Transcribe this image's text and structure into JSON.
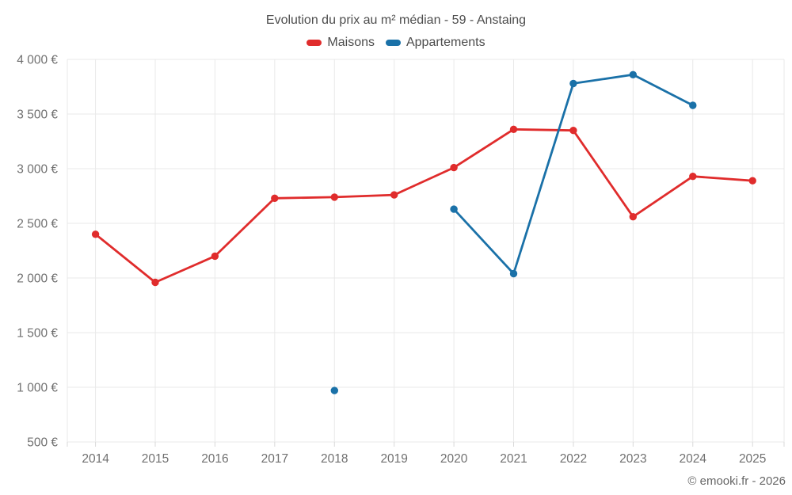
{
  "header": {
    "title": "Evolution du prix au m² médian - 59 - Anstaing"
  },
  "legend": {
    "items": [
      {
        "label": "Maisons",
        "color": "#e02c2c"
      },
      {
        "label": "Appartements",
        "color": "#1a71a8"
      }
    ]
  },
  "footer": {
    "credit": "© emooki.fr - 2026"
  },
  "colors": {
    "maisons": "#e02c2c",
    "appartements": "#1a71a8",
    "grid": "#e9e9e9",
    "tick": "#d9d9d9",
    "title_text": "#4d4d4d",
    "axis_text": "#707070",
    "footer_text": "#666666"
  },
  "chart_data": {
    "type": "line",
    "title": "Evolution du prix au m² médian - 59 - Anstaing",
    "categories": [
      "2014",
      "2015",
      "2016",
      "2017",
      "2018",
      "2019",
      "2020",
      "2021",
      "2022",
      "2023",
      "2024",
      "2025"
    ],
    "series": [
      {
        "name": "Maisons",
        "color": "#e02c2c",
        "values": [
          2400,
          1960,
          2200,
          2730,
          2740,
          2760,
          3010,
          3360,
          3350,
          2560,
          2930,
          2890
        ]
      },
      {
        "name": "Appartements",
        "color": "#1a71a8",
        "values": [
          null,
          null,
          null,
          null,
          970,
          null,
          2630,
          2040,
          3780,
          3860,
          3580,
          null
        ]
      }
    ],
    "ylim": [
      500,
      4000
    ],
    "ytick_step": 500,
    "ytick_labels": [
      "500 €",
      "1 000 €",
      "1 500 €",
      "2 000 €",
      "2 500 €",
      "3 000 €",
      "3 500 €",
      "4 000 €"
    ],
    "xlabel": "",
    "ylabel": "",
    "grid": true,
    "legend_position": "top",
    "marker": "circle",
    "note": "Appartements has data only for 2018 (isolated point) and 2020-2024"
  }
}
